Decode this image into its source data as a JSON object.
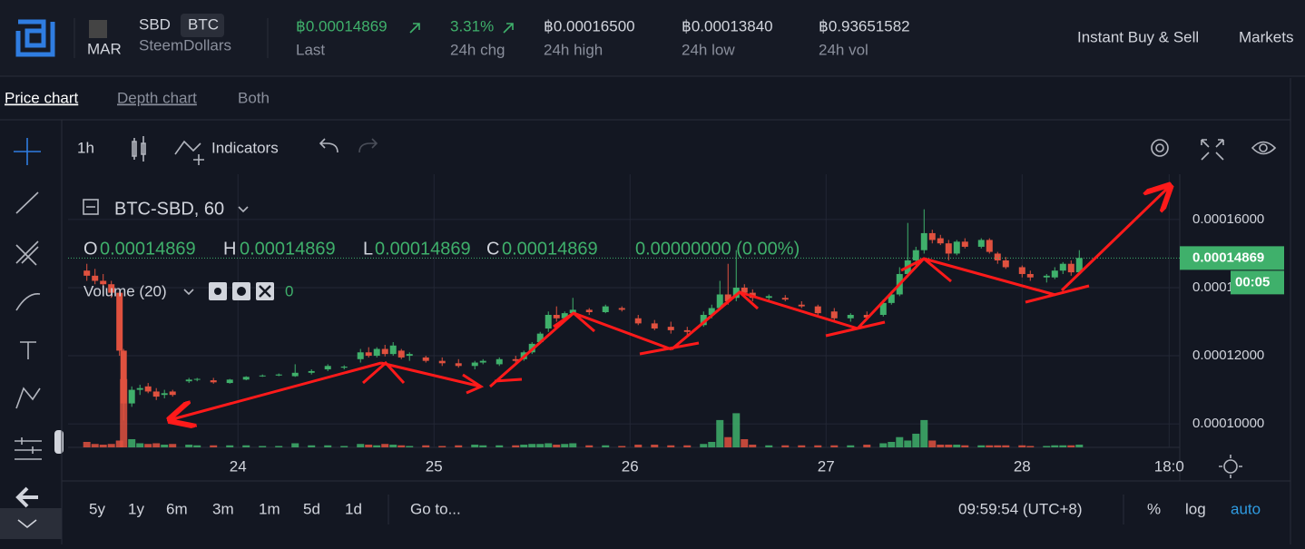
{
  "header": {
    "logo_alt": "MAR",
    "base": "SBD",
    "quote": "BTC",
    "name": "SteemDollars",
    "stats": [
      {
        "value": "฿0.00014869",
        "label": "Last"
      },
      {
        "value": "3.31%",
        "label": "24h chg"
      },
      {
        "value": "฿0.00016500",
        "label": "24h high"
      },
      {
        "value": "฿0.00013840",
        "label": "24h low"
      },
      {
        "value": "฿0.93651582",
        "label": "24h vol"
      }
    ],
    "nav": [
      "Instant Buy & Sell",
      "Markets"
    ]
  },
  "tabs": [
    "Price chart",
    "Depth chart",
    "Both"
  ],
  "toolbar": {
    "interval": "1h",
    "indicators": "Indicators"
  },
  "legend": {
    "symbol": "BTC-SBD, 60",
    "ohlc": [
      {
        "key": "O",
        "value": "0.00014869"
      },
      {
        "key": "H",
        "value": "0.00014869"
      },
      {
        "key": "L",
        "value": "0.00014869"
      },
      {
        "key": "C",
        "value": "0.00014869"
      }
    ],
    "change": "0.00000000 (0.00%)",
    "volume": "Volume (20)",
    "volume_value": "0"
  },
  "countdown": "00:05",
  "chart_data": {
    "type": "candlestick",
    "up_color": "#3fb06b",
    "down_color": "#e0513f",
    "grid": true,
    "last_price": 0.00014869,
    "xlim": [
      -20.8,
      115.3
    ],
    "ylim": [
      9.31e-05,
      0.0001733
    ],
    "volume_ylim": [
      0,
      400
    ],
    "xticks": [
      {
        "value": 0,
        "label": "24"
      },
      {
        "value": 24,
        "label": "25"
      },
      {
        "value": 48,
        "label": "26"
      },
      {
        "value": 72,
        "label": "27"
      },
      {
        "value": 96,
        "label": "28"
      },
      {
        "value": 114,
        "label": "18:0"
      }
    ],
    "yticks": [
      {
        "value": 0.0001,
        "label": "0.00010000"
      },
      {
        "value": 0.00012,
        "label": "0.00012000"
      },
      {
        "value": 0.00014,
        "label": "0.00014000"
      },
      {
        "value": 0.00016,
        "label": "0.00016000"
      }
    ],
    "x": [
      -18.5,
      -17.5,
      -16.5,
      -15.5,
      -14.5,
      -14,
      -13,
      -12,
      -11,
      -10,
      -9,
      -8,
      -6,
      -5,
      -3,
      -1,
      1,
      3,
      5,
      7,
      9,
      11,
      13,
      15,
      16,
      17,
      18,
      19,
      20,
      21,
      23,
      25,
      27,
      29,
      30,
      32,
      34,
      35,
      36,
      37,
      38,
      39,
      40,
      41,
      43,
      45,
      47,
      49,
      51,
      53,
      55,
      57,
      58,
      59,
      60,
      61,
      62,
      63,
      65,
      67,
      69,
      71,
      73,
      75,
      77,
      79,
      80,
      81,
      82,
      83,
      84,
      85,
      86,
      87,
      88,
      89,
      91,
      92,
      93,
      94,
      96,
      97,
      99,
      100,
      101,
      102,
      103
    ],
    "open": [
      0.000145,
      0.0001435,
      0.000142,
      0.000141,
      0.0001385,
      0.0001215,
      0.000106,
      0.00011,
      0.000111,
      0.0001095,
      0.0001085,
      0.0001095,
      0.0001125,
      0.000113,
      0.0001128,
      0.000112,
      0.000113,
      0.000114,
      0.0001142,
      0.000114,
      0.000115,
      0.000116,
      0.0001165,
      0.000119,
      0.000121,
      0.00012,
      0.000122,
      0.0001205,
      0.0001215,
      0.00012,
      0.0001195,
      0.0001185,
      0.0001178,
      0.000117,
      0.000118,
      0.0001175,
      0.000119,
      0.000119,
      0.000121,
      0.000124,
      0.000128,
      0.000132,
      0.000131,
      0.0001325,
      0.0001335,
      0.0001328,
      0.000134,
      0.000131,
      0.0001295,
      0.0001285,
      0.0001275,
      0.000129,
      0.000132,
      0.000134,
      0.000138,
      0.000137,
      0.00014,
      0.0001385,
      0.000137,
      0.000137,
      0.000135,
      0.0001345,
      0.000133,
      0.000131,
      0.000132,
      0.000132,
      0.0001355,
      0.000138,
      0.000144,
      0.000148,
      0.000151,
      0.000156,
      0.0001545,
      0.000153,
      0.00015,
      0.0001535,
      0.000152,
      0.000154,
      0.00015,
      0.000148,
      0.000146,
      0.000144,
      0.000143,
      0.000143,
      0.000145,
      0.000147,
      0.0001445
    ],
    "high": [
      0.000147,
      0.0001455,
      0.000144,
      0.000142,
      0.000139,
      0.000122,
      0.000111,
      0.0001115,
      0.000112,
      0.0001105,
      0.00011,
      0.00011,
      0.0001135,
      0.0001135,
      0.0001135,
      0.0001132,
      0.000114,
      0.0001145,
      0.0001148,
      0.0001175,
      0.000116,
      0.0001175,
      0.0001172,
      0.000122,
      0.0001225,
      0.0001225,
      0.0001232,
      0.000124,
      0.000122,
      0.000121,
      0.00012,
      0.0001195,
      0.000119,
      0.0001185,
      0.000119,
      0.0001195,
      0.00012,
      0.0001215,
      0.000124,
      0.000127,
      0.000133,
      0.0001345,
      0.000133,
      0.000137,
      0.000134,
      0.000135,
      0.0001345,
      0.000132,
      0.0001305,
      0.00013,
      0.0001285,
      0.000133,
      0.000135,
      0.000142,
      0.000147,
      0.000151,
      0.000141,
      0.0001395,
      0.000138,
      0.0001378,
      0.000136,
      0.000135,
      0.000134,
      0.0001325,
      0.000133,
      0.0001365,
      0.000139,
      0.000146,
      0.000159,
      0.000152,
      0.000163,
      0.000157,
      0.0001555,
      0.000154,
      0.000154,
      0.0001545,
      0.0001545,
      0.0001545,
      0.0001505,
      0.000149,
      0.0001465,
      0.000145,
      0.000144,
      0.000146,
      0.0001475,
      0.000148,
      0.000151
    ],
    "low": [
      0.000142,
      0.000141,
      0.00014,
      0.000137,
      0.00012,
      0.000101,
      0.000105,
      0.0001085,
      0.000109,
      0.000107,
      0.0001075,
      0.000108,
      0.000112,
      0.0001125,
      0.0001118,
      0.0001118,
      0.0001128,
      0.0001138,
      0.000114,
      0.0001138,
      0.0001145,
      0.0001155,
      0.000116,
      0.000118,
      0.0001195,
      0.0001195,
      0.0001198,
      0.00012,
      0.000119,
      0.0001185,
      0.000118,
      0.000117,
      0.0001165,
      0.000116,
      0.0001175,
      0.000117,
      0.000118,
      0.0001185,
      0.0001205,
      0.0001235,
      0.000127,
      0.00013,
      0.00013,
      0.000132,
      0.000132,
      0.0001325,
      0.000133,
      0.000129,
      0.0001275,
      0.0001265,
      0.000126,
      0.0001285,
      0.000131,
      0.0001335,
      0.000135,
      0.000136,
      0.0001375,
      0.000136,
      0.000136,
      0.000136,
      0.000134,
      0.000132,
      0.00013,
      0.00013,
      0.000131,
      0.0001315,
      0.000135,
      0.0001375,
      0.000143,
      0.000146,
      0.00015,
      0.000153,
      0.0001525,
      0.000148,
      0.0001495,
      0.0001515,
      0.0001515,
      0.00015,
      0.000147,
      0.0001455,
      0.000143,
      0.000142,
      0.0001415,
      0.0001425,
      0.000144,
      0.0001435,
      0.000144
    ],
    "close": [
      0.0001435,
      0.000142,
      0.000141,
      0.0001385,
      0.0001215,
      0.000106,
      0.00011,
      0.0001105,
      0.0001095,
      0.000108,
      0.000109,
      0.0001085,
      0.000113,
      0.0001132,
      0.0001122,
      0.000113,
      0.0001138,
      0.0001142,
      0.0001145,
      0.000115,
      0.0001155,
      0.000117,
      0.0001168,
      0.000121,
      0.00012,
      0.000122,
      0.0001205,
      0.000123,
      0.0001195,
      0.0001205,
      0.0001185,
      0.0001178,
      0.000117,
      0.000118,
      0.0001185,
      0.000119,
      0.0001185,
      0.000121,
      0.0001235,
      0.0001265,
      0.000132,
      0.000131,
      0.0001325,
      0.0001335,
      0.0001328,
      0.0001345,
      0.0001335,
      0.0001295,
      0.000128,
      0.0001275,
      0.000127,
      0.000132,
      0.000134,
      0.000138,
      0.000136,
      0.00014,
      0.0001385,
      0.000137,
      0.0001375,
      0.0001365,
      0.0001345,
      0.0001325,
      0.000131,
      0.000132,
      0.0001312,
      0.0001355,
      0.000138,
      0.000144,
      0.000148,
      0.000151,
      0.000156,
      0.000154,
      0.000153,
      0.00015,
      0.0001535,
      0.000152,
      0.000154,
      0.0001505,
      0.000148,
      0.000146,
      0.000144,
      0.000143,
      0.0001435,
      0.000145,
      0.000147,
      0.0001445,
      0.0001487
    ],
    "volume": [
      8,
      5,
      4,
      5,
      10,
      100,
      12,
      6,
      5,
      6,
      4,
      5,
      4,
      3,
      3,
      3,
      3,
      2,
      2,
      6,
      3,
      3,
      2,
      5,
      4,
      3,
      5,
      4,
      3,
      2,
      3,
      2,
      3,
      4,
      3,
      3,
      3,
      4,
      5,
      5,
      6,
      4,
      5,
      6,
      3,
      3,
      2,
      4,
      4,
      3,
      3,
      5,
      8,
      40,
      15,
      50,
      12,
      4,
      3,
      3,
      3,
      3,
      3,
      3,
      4,
      6,
      8,
      15,
      10,
      20,
      40,
      10,
      4,
      4,
      4,
      3,
      3,
      3,
      3,
      3,
      3,
      2,
      2,
      3,
      3,
      3,
      4
    ]
  },
  "footer": {
    "ranges": [
      "5y",
      "1y",
      "6m",
      "3m",
      "1m",
      "5d",
      "1d"
    ],
    "goto": "Go to...",
    "time": "09:59:54 (UTC+8)",
    "scale": [
      "%",
      "log",
      "auto"
    ]
  }
}
